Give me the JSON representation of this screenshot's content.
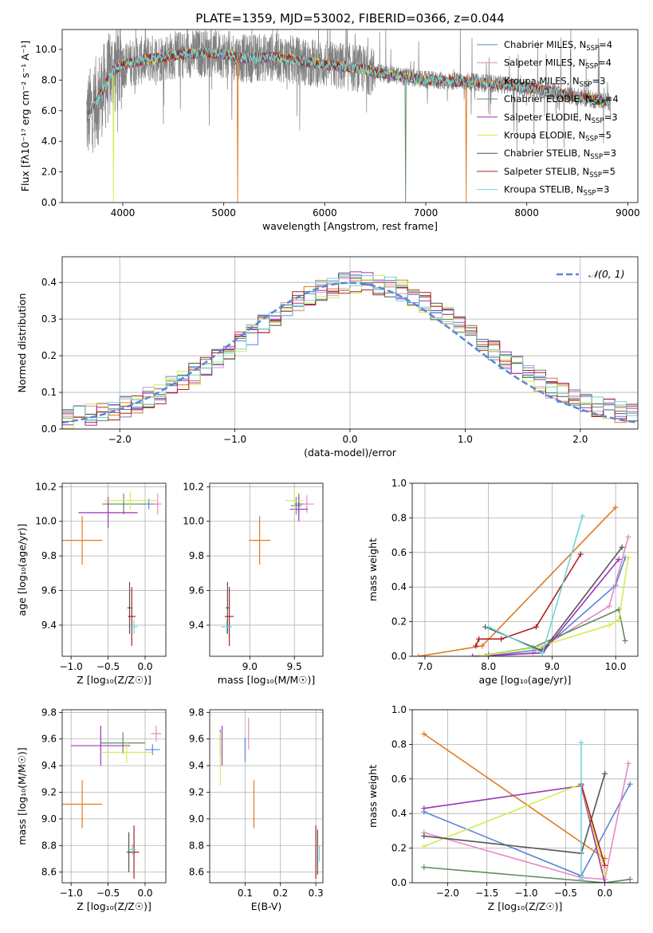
{
  "colors": {
    "Chabrier MILES": "#5b86d6",
    "Salpeter MILES": "#e68ac2",
    "Kroupa MILES": "#e07a1f",
    "Chabrier ELODIE": "#5f8a5f",
    "Salpeter ELODIE": "#9b35b8",
    "Kroupa ELODIE": "#d4ec4e",
    "Chabrier STELIB": "#555555",
    "Salpeter STELIB": "#b01e1e",
    "Kroupa STELIB": "#6fd6d8",
    "data": "#808080",
    "normal": "#5b86d6"
  },
  "chart_data": [
    {
      "id": "spectrum",
      "type": "line",
      "title": "PLATE=1359, MJD=53002, FIBERID=0366, z=0.044",
      "xlabel": "wavelength [Angstrom, rest frame]",
      "ylabel": "Flux [fλ10⁻¹⁷ erg cm⁻² s⁻¹ A⁻¹]",
      "xlim": [
        3400,
        9100
      ],
      "ylim": [
        0,
        11.3
      ],
      "xticks": [
        4000,
        5000,
        6000,
        7000,
        8000,
        9000
      ],
      "yticks": [
        0,
        2,
        4,
        6,
        8,
        10
      ],
      "continuum": {
        "x": [
          3650,
          3700,
          3800,
          3900,
          4000,
          4200,
          4500,
          4800,
          5000,
          5200,
          5500,
          5800,
          6000,
          6300,
          6600,
          7000,
          7400,
          7800,
          8200,
          8500,
          8800
        ],
        "y": [
          5.6,
          6.2,
          7.3,
          8.6,
          9.0,
          9.3,
          9.6,
          9.8,
          9.7,
          9.4,
          9.5,
          9.2,
          9.0,
          8.8,
          8.4,
          8.0,
          7.9,
          7.7,
          7.3,
          6.9,
          6.6
        ]
      },
      "legend": [
        {
          "label": "Chabrier MILES, N",
          "sub": "SSP",
          "value": "=4"
        },
        {
          "label": "Salpeter MILES, N",
          "sub": "SSP",
          "value": "=4"
        },
        {
          "label": "Kroupa MILES, N",
          "sub": "SSP",
          "value": "=3"
        },
        {
          "label": "Chabrier ELODIE, N",
          "sub": "SSP",
          "value": "=4"
        },
        {
          "label": "Salpeter ELODIE, N",
          "sub": "SSP",
          "value": "=3"
        },
        {
          "label": "Kroupa ELODIE, N",
          "sub": "SSP",
          "value": "=5"
        },
        {
          "label": "Chabrier STELIB, N",
          "sub": "SSP",
          "value": "=3"
        },
        {
          "label": "Salpeter STELIB, N",
          "sub": "SSP",
          "value": "=5"
        },
        {
          "label": "Kroupa STELIB, N",
          "sub": "SSP",
          "value": "=3"
        }
      ],
      "legend_placement": "top-right"
    },
    {
      "id": "residuals",
      "type": "line",
      "xlabel": "(data-model)/error",
      "ylabel": "Normed distribution",
      "xlim": [
        -2.5,
        2.5
      ],
      "ylim": [
        0,
        0.47
      ],
      "xticks": [
        -2,
        -1,
        0,
        1,
        2
      ],
      "yticks": [
        0.0,
        0.1,
        0.2,
        0.3,
        0.4
      ],
      "grid": true,
      "legend": "𝒩(0, 1)",
      "legend_placement": "top-right",
      "bins": 50
    },
    {
      "id": "age-vs-Z",
      "type": "scatter",
      "xlabel": "Z [log₁₀(Z/Z☉)]",
      "ylabel": "age  [log₁₀(age/yr)]",
      "xlim": [
        -1.12,
        0.28
      ],
      "ylim": [
        9.22,
        10.22
      ],
      "xticks": [
        -1.0,
        -0.5,
        0.0
      ],
      "yticks": [
        9.4,
        9.6,
        9.8,
        10.0,
        10.2
      ],
      "grid": true,
      "points": [
        {
          "model": "Chabrier MILES",
          "x": 0.05,
          "y": 10.1,
          "xerr": 0.12,
          "yerr": 0.03
        },
        {
          "model": "Salpeter MILES",
          "x": 0.17,
          "y": 10.1,
          "xerr": 0.05,
          "yerr": 0.06
        },
        {
          "model": "Kroupa MILES",
          "x": -0.85,
          "y": 9.89,
          "xerr": 0.27,
          "yerr": 0.14
        },
        {
          "model": "Chabrier ELODIE",
          "x": -0.29,
          "y": 10.1,
          "xerr": 0.29,
          "yerr": 0.06
        },
        {
          "model": "Salpeter ELODIE",
          "x": -0.5,
          "y": 10.05,
          "xerr": 0.4,
          "yerr": 0.09
        },
        {
          "model": "Kroupa ELODIE",
          "x": -0.2,
          "y": 10.12,
          "xerr": 0.35,
          "yerr": 0.05
        },
        {
          "model": "Chabrier STELIB",
          "x": -0.21,
          "y": 9.5,
          "xerr": 0.03,
          "yerr": 0.15
        },
        {
          "model": "Salpeter STELIB",
          "x": -0.18,
          "y": 9.45,
          "xerr": 0.05,
          "yerr": 0.17
        },
        {
          "model": "Kroupa STELIB",
          "x": -0.15,
          "y": 9.39,
          "xerr": 0.05,
          "yerr": 0.04
        }
      ]
    },
    {
      "id": "age-vs-mass",
      "type": "scatter",
      "xlabel": "mass [log₁₀(M/M☉)]",
      "ylabel": "",
      "xlim": [
        8.55,
        9.82
      ],
      "ylim": [
        9.22,
        10.22
      ],
      "xticks": [
        9.0,
        9.5
      ],
      "yticks": [
        9.4,
        9.6,
        9.8,
        10.0,
        10.2
      ],
      "grid": true,
      "points": [
        {
          "model": "Chabrier MILES",
          "x": 9.52,
          "y": 10.09,
          "xerr": 0.06,
          "yerr": 0.05
        },
        {
          "model": "Salpeter MILES",
          "x": 9.64,
          "y": 10.1,
          "xerr": 0.08,
          "yerr": 0.05
        },
        {
          "model": "Kroupa MILES",
          "x": 9.11,
          "y": 9.89,
          "xerr": 0.12,
          "yerr": 0.14
        },
        {
          "model": "Chabrier ELODIE",
          "x": 9.55,
          "y": 10.1,
          "xerr": 0.05,
          "yerr": 0.06
        },
        {
          "model": "Salpeter ELODIE",
          "x": 9.55,
          "y": 10.07,
          "xerr": 0.1,
          "yerr": 0.07
        },
        {
          "model": "Kroupa ELODIE",
          "x": 9.5,
          "y": 10.12,
          "xerr": 0.1,
          "yerr": 0.07
        },
        {
          "model": "Chabrier STELIB",
          "x": 8.75,
          "y": 9.5,
          "xerr": 0.02,
          "yerr": 0.15
        },
        {
          "model": "Salpeter STELIB",
          "x": 8.77,
          "y": 9.45,
          "xerr": 0.05,
          "yerr": 0.17
        },
        {
          "model": "Kroupa STELIB",
          "x": 8.74,
          "y": 9.39,
          "xerr": 0.06,
          "yerr": 0.04
        }
      ]
    },
    {
      "id": "mass-weight-vs-age",
      "type": "line",
      "xlabel": "age  [log₁₀(age/yr)]",
      "ylabel": "mass weight",
      "xlim": [
        6.8,
        10.35
      ],
      "ylim": [
        0,
        1.0
      ],
      "xticks": [
        7,
        8,
        9,
        10
      ],
      "yticks": [
        0.0,
        0.2,
        0.4,
        0.6,
        0.8,
        1.0
      ],
      "grid": true,
      "series": [
        {
          "model": "Chabrier MILES",
          "x": [
            7.95,
            8.85,
            10.0,
            10.15
          ],
          "y": [
            0.0,
            0.04,
            0.41,
            0.57
          ]
        },
        {
          "model": "Salpeter MILES",
          "x": [
            8.05,
            8.7,
            9.9,
            10.2
          ],
          "y": [
            0.0,
            0.02,
            0.29,
            0.69
          ]
        },
        {
          "model": "Kroupa MILES",
          "x": [
            6.9,
            7.9,
            10.0
          ],
          "y": [
            0.0,
            0.06,
            0.86
          ]
        },
        {
          "model": "Chabrier ELODIE",
          "x": [
            8.0,
            8.7,
            10.05,
            10.15
          ],
          "y": [
            0.01,
            0.05,
            0.27,
            0.09
          ]
        },
        {
          "model": "Salpeter ELODIE",
          "x": [
            7.75,
            8.85,
            10.05
          ],
          "y": [
            0.0,
            0.02,
            0.56
          ]
        },
        {
          "model": "Kroupa ELODIE",
          "x": [
            7.85,
            8.75,
            9.9,
            10.05,
            10.2
          ],
          "y": [
            0.0,
            0.05,
            0.18,
            0.21,
            0.57
          ]
        },
        {
          "model": "Chabrier STELIB",
          "x": [
            7.95,
            8.85,
            10.1
          ],
          "y": [
            0.17,
            0.03,
            0.63
          ]
        },
        {
          "model": "Salpeter STELIB",
          "x": [
            7.8,
            7.85,
            8.2,
            8.75,
            9.45
          ],
          "y": [
            0.06,
            0.1,
            0.1,
            0.17,
            0.59
          ]
        },
        {
          "model": "Kroupa STELIB",
          "x": [
            8.0,
            8.85,
            9.48
          ],
          "y": [
            0.17,
            0.02,
            0.81
          ]
        }
      ]
    },
    {
      "id": "mass-vs-Z",
      "type": "scatter",
      "xlabel": "Z [log₁₀(Z/Z☉)]",
      "ylabel": "mass [log₁₀(M/M☉)]",
      "xlim": [
        -1.12,
        0.28
      ],
      "ylim": [
        8.52,
        9.82
      ],
      "xticks": [
        -1.0,
        -0.5,
        0.0
      ],
      "yticks": [
        8.6,
        8.8,
        9.0,
        9.2,
        9.4,
        9.6,
        9.8
      ],
      "grid": true,
      "points": [
        {
          "model": "Chabrier MILES",
          "x": 0.1,
          "y": 9.52,
          "xerr": 0.1,
          "yerr": 0.04
        },
        {
          "model": "Salpeter MILES",
          "x": 0.15,
          "y": 9.64,
          "xerr": 0.07,
          "yerr": 0.06
        },
        {
          "model": "Kroupa MILES",
          "x": -0.85,
          "y": 9.11,
          "xerr": 0.27,
          "yerr": 0.18
        },
        {
          "model": "Chabrier ELODIE",
          "x": -0.3,
          "y": 9.57,
          "xerr": 0.3,
          "yerr": 0.08
        },
        {
          "model": "Salpeter ELODIE",
          "x": -0.6,
          "y": 9.55,
          "xerr": 0.4,
          "yerr": 0.15
        },
        {
          "model": "Kroupa ELODIE",
          "x": -0.25,
          "y": 9.5,
          "xerr": 0.35,
          "yerr": 0.08
        },
        {
          "model": "Chabrier STELIB",
          "x": -0.22,
          "y": 8.75,
          "xerr": 0.03,
          "yerr": 0.15
        },
        {
          "model": "Salpeter STELIB",
          "x": -0.15,
          "y": 8.75,
          "xerr": 0.07,
          "yerr": 0.2
        },
        {
          "model": "Kroupa STELIB",
          "x": -0.17,
          "y": 8.77,
          "xerr": 0.05,
          "yerr": 0.04
        }
      ]
    },
    {
      "id": "mass-vs-ebv",
      "type": "scatter",
      "xlabel": "E(B-V)",
      "ylabel": "",
      "xlim": [
        0.0,
        0.32
      ],
      "ylim": [
        8.52,
        9.82
      ],
      "xticks": [
        0.1,
        0.2,
        0.3
      ],
      "yticks": [
        8.6,
        8.8,
        9.0,
        9.2,
        9.4,
        9.6,
        9.8
      ],
      "grid": true,
      "points": [
        {
          "model": "Chabrier MILES",
          "x": 0.1,
          "y": 9.52,
          "yerr": 0.09
        },
        {
          "model": "Salpeter MILES",
          "x": 0.11,
          "y": 9.64,
          "yerr": 0.12
        },
        {
          "model": "Kroupa MILES",
          "x": 0.125,
          "y": 9.11,
          "yerr": 0.18
        },
        {
          "model": "Chabrier ELODIE",
          "x": 0.03,
          "y": 9.57,
          "yerr": 0.1
        },
        {
          "model": "Salpeter ELODIE",
          "x": 0.035,
          "y": 9.55,
          "yerr": 0.15
        },
        {
          "model": "Kroupa ELODIE",
          "x": 0.03,
          "y": 9.45,
          "yerr": 0.2
        },
        {
          "model": "Chabrier STELIB",
          "x": 0.305,
          "y": 8.75,
          "yerr": 0.17
        },
        {
          "model": "Salpeter STELIB",
          "x": 0.3,
          "y": 8.75,
          "yerr": 0.2
        },
        {
          "model": "Kroupa STELIB",
          "x": 0.31,
          "y": 8.74,
          "yerr": 0.06
        }
      ]
    },
    {
      "id": "mass-weight-vs-Z",
      "type": "line",
      "xlabel": "Z [log₁₀(Z/Z☉)]",
      "ylabel": "mass weight",
      "xlim": [
        -2.45,
        0.42
      ],
      "ylim": [
        0,
        1.0
      ],
      "xticks": [
        -2.0,
        -1.5,
        -1.0,
        -0.5,
        0.0
      ],
      "yticks": [
        0.0,
        0.2,
        0.4,
        0.6,
        0.8,
        1.0
      ],
      "grid": true,
      "series": [
        {
          "model": "Chabrier MILES",
          "x": [
            -2.3,
            -0.3,
            0.32
          ],
          "y": [
            0.41,
            0.04,
            0.57
          ]
        },
        {
          "model": "Salpeter MILES",
          "x": [
            -2.3,
            -0.3,
            0.0,
            0.3
          ],
          "y": [
            0.29,
            0.03,
            0.02,
            0.69
          ]
        },
        {
          "model": "Kroupa MILES",
          "x": [
            -2.3,
            0.0
          ],
          "y": [
            0.86,
            0.14
          ]
        },
        {
          "model": "Chabrier ELODIE",
          "x": [
            -2.3,
            0.0,
            0.32
          ],
          "y": [
            0.09,
            0.0,
            0.02
          ]
        },
        {
          "model": "Salpeter ELODIE",
          "x": [
            -2.3,
            -0.3,
            0.0
          ],
          "y": [
            0.43,
            0.56,
            0.0
          ]
        },
        {
          "model": "Kroupa ELODIE",
          "x": [
            -2.3,
            -0.3,
            0.0
          ],
          "y": [
            0.21,
            0.57,
            0.05
          ]
        },
        {
          "model": "Chabrier STELIB",
          "x": [
            -2.3,
            -0.3,
            0.0
          ],
          "y": [
            0.27,
            0.17,
            0.63
          ]
        },
        {
          "model": "Salpeter STELIB",
          "x": [
            -0.3,
            0.0
          ],
          "y": [
            0.57,
            0.1
          ]
        },
        {
          "model": "Kroupa STELIB",
          "x": [
            -0.3,
            -0.3
          ],
          "y": [
            0.02,
            0.81
          ]
        }
      ]
    }
  ]
}
